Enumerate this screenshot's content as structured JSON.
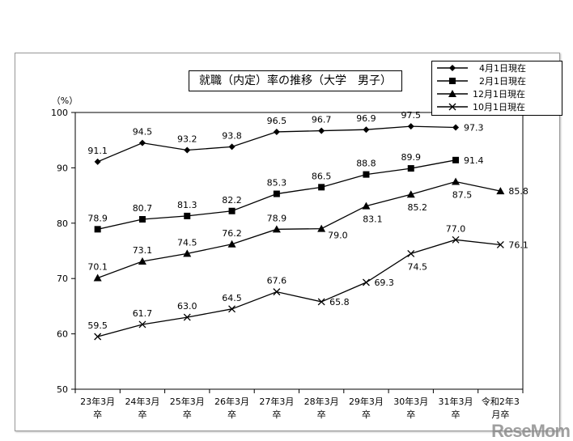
{
  "chart_data": {
    "type": "line",
    "title": "就職（内定）率の推移（大学　男子）",
    "ylabel": "（%）",
    "ylim": [
      50,
      100
    ],
    "yticks": [
      50,
      60,
      70,
      80,
      90,
      100
    ],
    "categories": [
      [
        "23年3月",
        "卒"
      ],
      [
        "24年3月",
        "卒"
      ],
      [
        "25年3月",
        "卒"
      ],
      [
        "26年3月",
        "卒"
      ],
      [
        "27年3月",
        "卒"
      ],
      [
        "28年3月",
        "卒"
      ],
      [
        "29年3月",
        "卒"
      ],
      [
        "30年3月",
        "卒"
      ],
      [
        "31年3月",
        "卒"
      ],
      [
        "令和2年3",
        "月卒"
      ]
    ],
    "legend_position": "top-right",
    "series": [
      {
        "name": "4月1日現在",
        "marker": "diamond",
        "values": [
          91.1,
          94.5,
          93.2,
          93.8,
          96.5,
          96.7,
          96.9,
          97.5,
          97.3,
          null
        ],
        "labels": [
          "91.1",
          "94.5",
          "93.2",
          "93.8",
          "96.5",
          "96.7",
          "96.9",
          "97.5",
          "97.3",
          null
        ],
        "label_pos": [
          "above",
          "above",
          "above",
          "above",
          "above",
          "above",
          "above",
          "above",
          "right",
          null
        ]
      },
      {
        "name": "2月1日現在",
        "marker": "square",
        "values": [
          78.9,
          80.7,
          81.3,
          82.2,
          85.3,
          86.5,
          88.8,
          89.9,
          91.4,
          null
        ],
        "labels": [
          "78.9",
          "80.7",
          "81.3",
          "82.2",
          "85.3",
          "86.5",
          "88.8",
          "89.9",
          "91.4",
          null
        ],
        "label_pos": [
          "above",
          "above",
          "above",
          "above",
          "above",
          "above",
          "above",
          "above",
          "right",
          null
        ]
      },
      {
        "name": "12月1日現在",
        "marker": "triangle",
        "values": [
          70.1,
          73.1,
          74.5,
          76.2,
          78.9,
          79.0,
          83.1,
          85.2,
          87.5,
          85.8
        ],
        "labels": [
          "70.1",
          "73.1",
          "74.5",
          "76.2",
          "78.9",
          "79.0",
          "83.1",
          "85.2",
          "87.5",
          "85.8"
        ],
        "label_pos": [
          "above",
          "above",
          "above",
          "above",
          "above",
          "belowright",
          "below",
          "below",
          "below",
          "right"
        ]
      },
      {
        "name": "10月1日現在",
        "marker": "x",
        "values": [
          59.5,
          61.7,
          63.0,
          64.5,
          67.6,
          65.8,
          69.3,
          74.5,
          77.0,
          76.1
        ],
        "labels": [
          "59.5",
          "61.7",
          "63.0",
          "64.5",
          "67.6",
          "65.8",
          "69.3",
          "74.5",
          "77.0",
          "76.1"
        ],
        "label_pos": [
          "above",
          "above",
          "above",
          "above",
          "above",
          "right",
          "right",
          "below",
          "above",
          "right"
        ]
      }
    ]
  },
  "watermark": "ReseMom"
}
